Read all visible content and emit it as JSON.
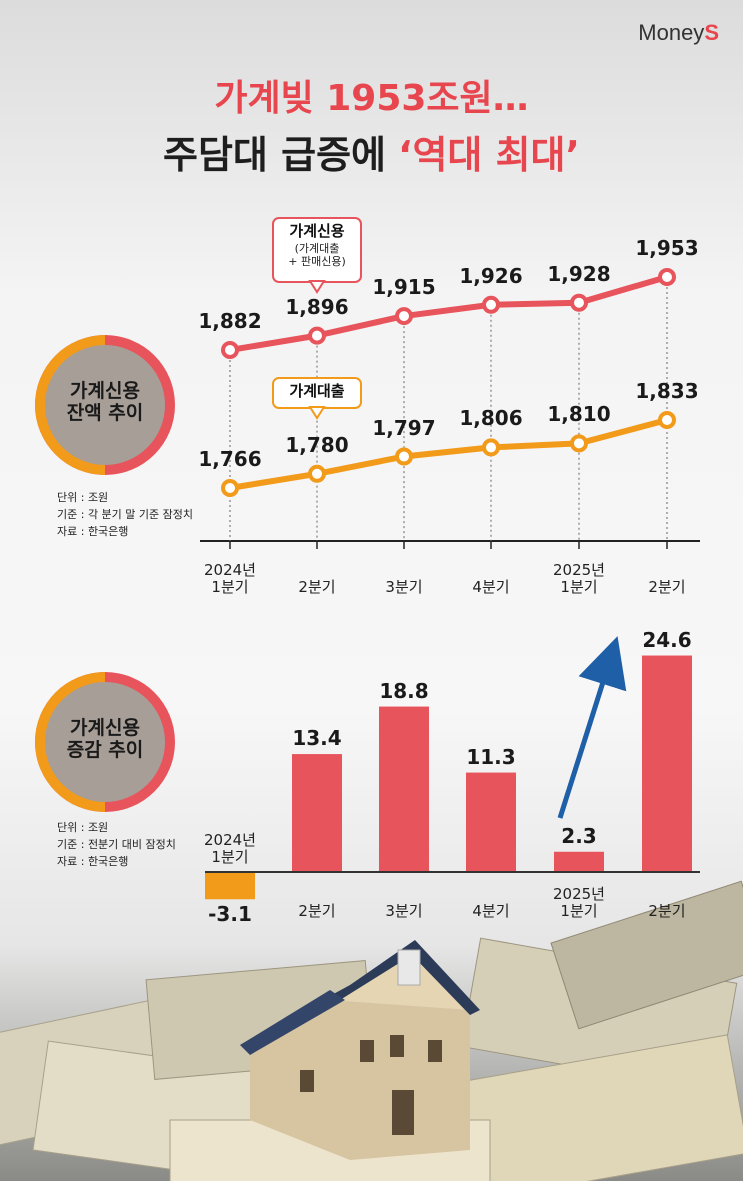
{
  "header": {
    "logo": "Money",
    "logo_accent": "S",
    "title_line1": "가계빚 1953조원…",
    "title_line2": "주담대 급증에",
    "title_line2_accent": "‘역대 최대’"
  },
  "chart_data": [
    {
      "type": "line",
      "title": "가계신용\n잔액 추이",
      "categories": [
        "2024년\n1분기",
        "2분기",
        "3분기",
        "4분기",
        "2025년\n1분기",
        "2분기"
      ],
      "series": [
        {
          "name": "가계신용",
          "note": "(가계대출\n+ 판매신용)",
          "color": "#e8545b",
          "values": [
            1882,
            1896,
            1915,
            1926,
            1928,
            1953
          ],
          "value_labels": [
            "1,882",
            "1,896",
            "1,915",
            "1,926",
            "1,928",
            "1,953"
          ]
        },
        {
          "name": "가계대출",
          "color": "#f29a1a",
          "values": [
            1766,
            1780,
            1797,
            1806,
            1810,
            1833
          ],
          "value_labels": [
            "1,766",
            "1,780",
            "1,797",
            "1,806",
            "1,810",
            "1,833"
          ]
        }
      ],
      "notes": [
        "단위 : 조원",
        "기준 : 각 분기 말 기준 잠정치",
        "자료 : 한국은행"
      ]
    },
    {
      "type": "bar",
      "title": "가계신용\n증감 추이",
      "categories": [
        "2024년\n1분기",
        "2분기",
        "3분기",
        "4분기",
        "2025년\n1분기",
        "2분기"
      ],
      "values": [
        -3.1,
        13.4,
        18.8,
        11.3,
        2.3,
        24.6
      ],
      "color": "#e8545b",
      "negative_color": "#f29a1a",
      "notes": [
        "단위 : 조원",
        "기준 : 전분기 대비 잠정치",
        "자료 : 한국은행"
      ]
    }
  ]
}
